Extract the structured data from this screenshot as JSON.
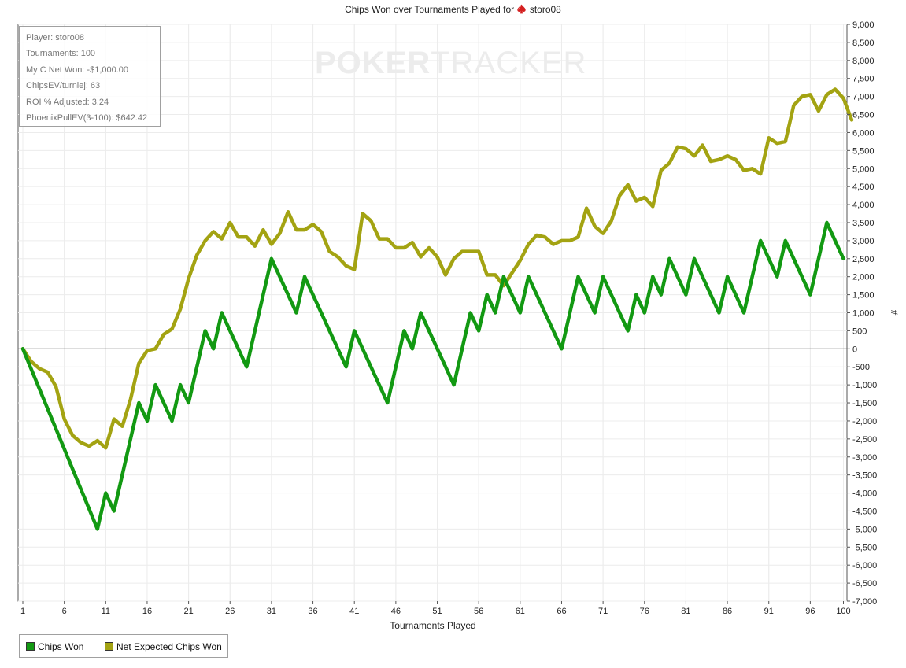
{
  "title": {
    "prefix": "Chips Won over Tournaments Played for",
    "player": "storo08",
    "icon": "spade-icon"
  },
  "watermark": {
    "bold": "POKER",
    "thin": "TRACKER"
  },
  "stats": [
    "Player: storo08",
    "Tournaments: 100",
    "My C Net Won: -$1,000.00",
    "ChipsEV/turniej: 63",
    "ROI % Adjusted: 3.24",
    "PhoenixPullEV(3-100): $642.42"
  ],
  "legend": [
    {
      "label": "Chips Won",
      "color": "#129912"
    },
    {
      "label": "Net Expected Chips Won",
      "color": "#a3a312"
    }
  ],
  "chart_data": {
    "type": "line",
    "xlabel": "Tournaments Played",
    "ylabel": "#",
    "xlim": [
      1,
      100
    ],
    "ylim": [
      -7000,
      9000
    ],
    "xticks": [
      1,
      6,
      11,
      16,
      21,
      26,
      31,
      36,
      41,
      46,
      51,
      56,
      61,
      66,
      71,
      76,
      81,
      86,
      91,
      96,
      100
    ],
    "yticks": [
      -7000,
      -6500,
      -6000,
      -5500,
      -5000,
      -4500,
      -4000,
      -3500,
      -3000,
      -2500,
      -2000,
      -1500,
      -1000,
      -500,
      0,
      500,
      1000,
      1500,
      2000,
      2500,
      3000,
      3500,
      4000,
      4500,
      5000,
      5500,
      6000,
      6500,
      7000,
      7500,
      8000,
      8500,
      9000
    ],
    "grid": true,
    "legend_position": "bottom-left",
    "series": [
      {
        "name": "Chips Won",
        "color": "#129912",
        "points": [
          [
            1,
            0
          ],
          [
            10,
            -5000
          ],
          [
            11,
            -4000
          ],
          [
            12,
            -4500
          ],
          [
            15,
            -1500
          ],
          [
            16,
            -2000
          ],
          [
            17,
            -1000
          ],
          [
            19,
            -2000
          ],
          [
            20,
            -1000
          ],
          [
            21,
            -1500
          ],
          [
            23,
            500
          ],
          [
            24,
            0
          ],
          [
            25,
            1000
          ],
          [
            28,
            -500
          ],
          [
            31,
            2500
          ],
          [
            34,
            1000
          ],
          [
            35,
            2000
          ],
          [
            40,
            -500
          ],
          [
            41,
            500
          ],
          [
            45,
            -1500
          ],
          [
            47,
            500
          ],
          [
            48,
            0
          ],
          [
            49,
            1000
          ],
          [
            53,
            -1000
          ],
          [
            55,
            1000
          ],
          [
            56,
            500
          ],
          [
            57,
            1500
          ],
          [
            58,
            1000
          ],
          [
            59,
            2000
          ],
          [
            61,
            1000
          ],
          [
            62,
            2000
          ],
          [
            66,
            0
          ],
          [
            68,
            2000
          ],
          [
            70,
            1000
          ],
          [
            71,
            2000
          ],
          [
            74,
            500
          ],
          [
            75,
            1500
          ],
          [
            76,
            1000
          ],
          [
            77,
            2000
          ],
          [
            78,
            1500
          ],
          [
            79,
            2500
          ],
          [
            81,
            1500
          ],
          [
            82,
            2500
          ],
          [
            85,
            1000
          ],
          [
            86,
            2000
          ],
          [
            88,
            1000
          ],
          [
            90,
            3000
          ],
          [
            92,
            2000
          ],
          [
            93,
            3000
          ],
          [
            96,
            1500
          ],
          [
            98,
            3500
          ],
          [
            100,
            2500
          ]
        ]
      },
      {
        "name": "Net Expected Chips Won",
        "color": "#a3a312",
        "points": [
          [
            1,
            0
          ],
          [
            2,
            -350
          ],
          [
            3,
            -550
          ],
          [
            4,
            -650
          ],
          [
            5,
            -1050
          ],
          [
            6,
            -1950
          ],
          [
            7,
            -2400
          ],
          [
            8,
            -2600
          ],
          [
            9,
            -2700
          ],
          [
            10,
            -2550
          ],
          [
            11,
            -2750
          ],
          [
            12,
            -1950
          ],
          [
            13,
            -2150
          ],
          [
            14,
            -1400
          ],
          [
            15,
            -400
          ],
          [
            16,
            -50
          ],
          [
            17,
            0
          ],
          [
            18,
            400
          ],
          [
            19,
            550
          ],
          [
            20,
            1100
          ],
          [
            21,
            1950
          ],
          [
            22,
            2600
          ],
          [
            23,
            3000
          ],
          [
            24,
            3250
          ],
          [
            25,
            3050
          ],
          [
            26,
            3500
          ],
          [
            27,
            3100
          ],
          [
            28,
            3100
          ],
          [
            29,
            2850
          ],
          [
            30,
            3300
          ],
          [
            31,
            2900
          ],
          [
            32,
            3200
          ],
          [
            33,
            3800
          ],
          [
            34,
            3300
          ],
          [
            35,
            3300
          ],
          [
            36,
            3450
          ],
          [
            37,
            3250
          ],
          [
            38,
            2700
          ],
          [
            39,
            2550
          ],
          [
            40,
            2300
          ],
          [
            41,
            2200
          ],
          [
            42,
            3750
          ],
          [
            43,
            3550
          ],
          [
            44,
            3050
          ],
          [
            45,
            3050
          ],
          [
            46,
            2800
          ],
          [
            47,
            2800
          ],
          [
            48,
            2950
          ],
          [
            49,
            2550
          ],
          [
            50,
            2800
          ],
          [
            51,
            2550
          ],
          [
            52,
            2050
          ],
          [
            53,
            2500
          ],
          [
            54,
            2700
          ],
          [
            55,
            2700
          ],
          [
            56,
            2700
          ],
          [
            57,
            2050
          ],
          [
            58,
            2050
          ],
          [
            59,
            1750
          ],
          [
            60,
            2100
          ],
          [
            61,
            2450
          ],
          [
            62,
            2900
          ],
          [
            63,
            3150
          ],
          [
            64,
            3100
          ],
          [
            65,
            2900
          ],
          [
            66,
            3000
          ],
          [
            67,
            3000
          ],
          [
            68,
            3100
          ],
          [
            69,
            3900
          ],
          [
            70,
            3400
          ],
          [
            71,
            3200
          ],
          [
            72,
            3550
          ],
          [
            73,
            4250
          ],
          [
            74,
            4550
          ],
          [
            75,
            4100
          ],
          [
            76,
            4200
          ],
          [
            77,
            3950
          ],
          [
            78,
            4950
          ],
          [
            79,
            5150
          ],
          [
            80,
            5600
          ],
          [
            81,
            5550
          ],
          [
            82,
            5350
          ],
          [
            83,
            5650
          ],
          [
            84,
            5200
          ],
          [
            85,
            5250
          ],
          [
            86,
            5350
          ],
          [
            87,
            5250
          ],
          [
            88,
            4950
          ],
          [
            89,
            5000
          ],
          [
            90,
            4850
          ],
          [
            91,
            5850
          ],
          [
            92,
            5700
          ],
          [
            93,
            5750
          ],
          [
            94,
            6750
          ],
          [
            95,
            7000
          ],
          [
            96,
            7050
          ],
          [
            97,
            6600
          ],
          [
            98,
            7050
          ],
          [
            99,
            7200
          ],
          [
            100,
            6950
          ],
          [
            101,
            6350
          ]
        ]
      }
    ]
  }
}
